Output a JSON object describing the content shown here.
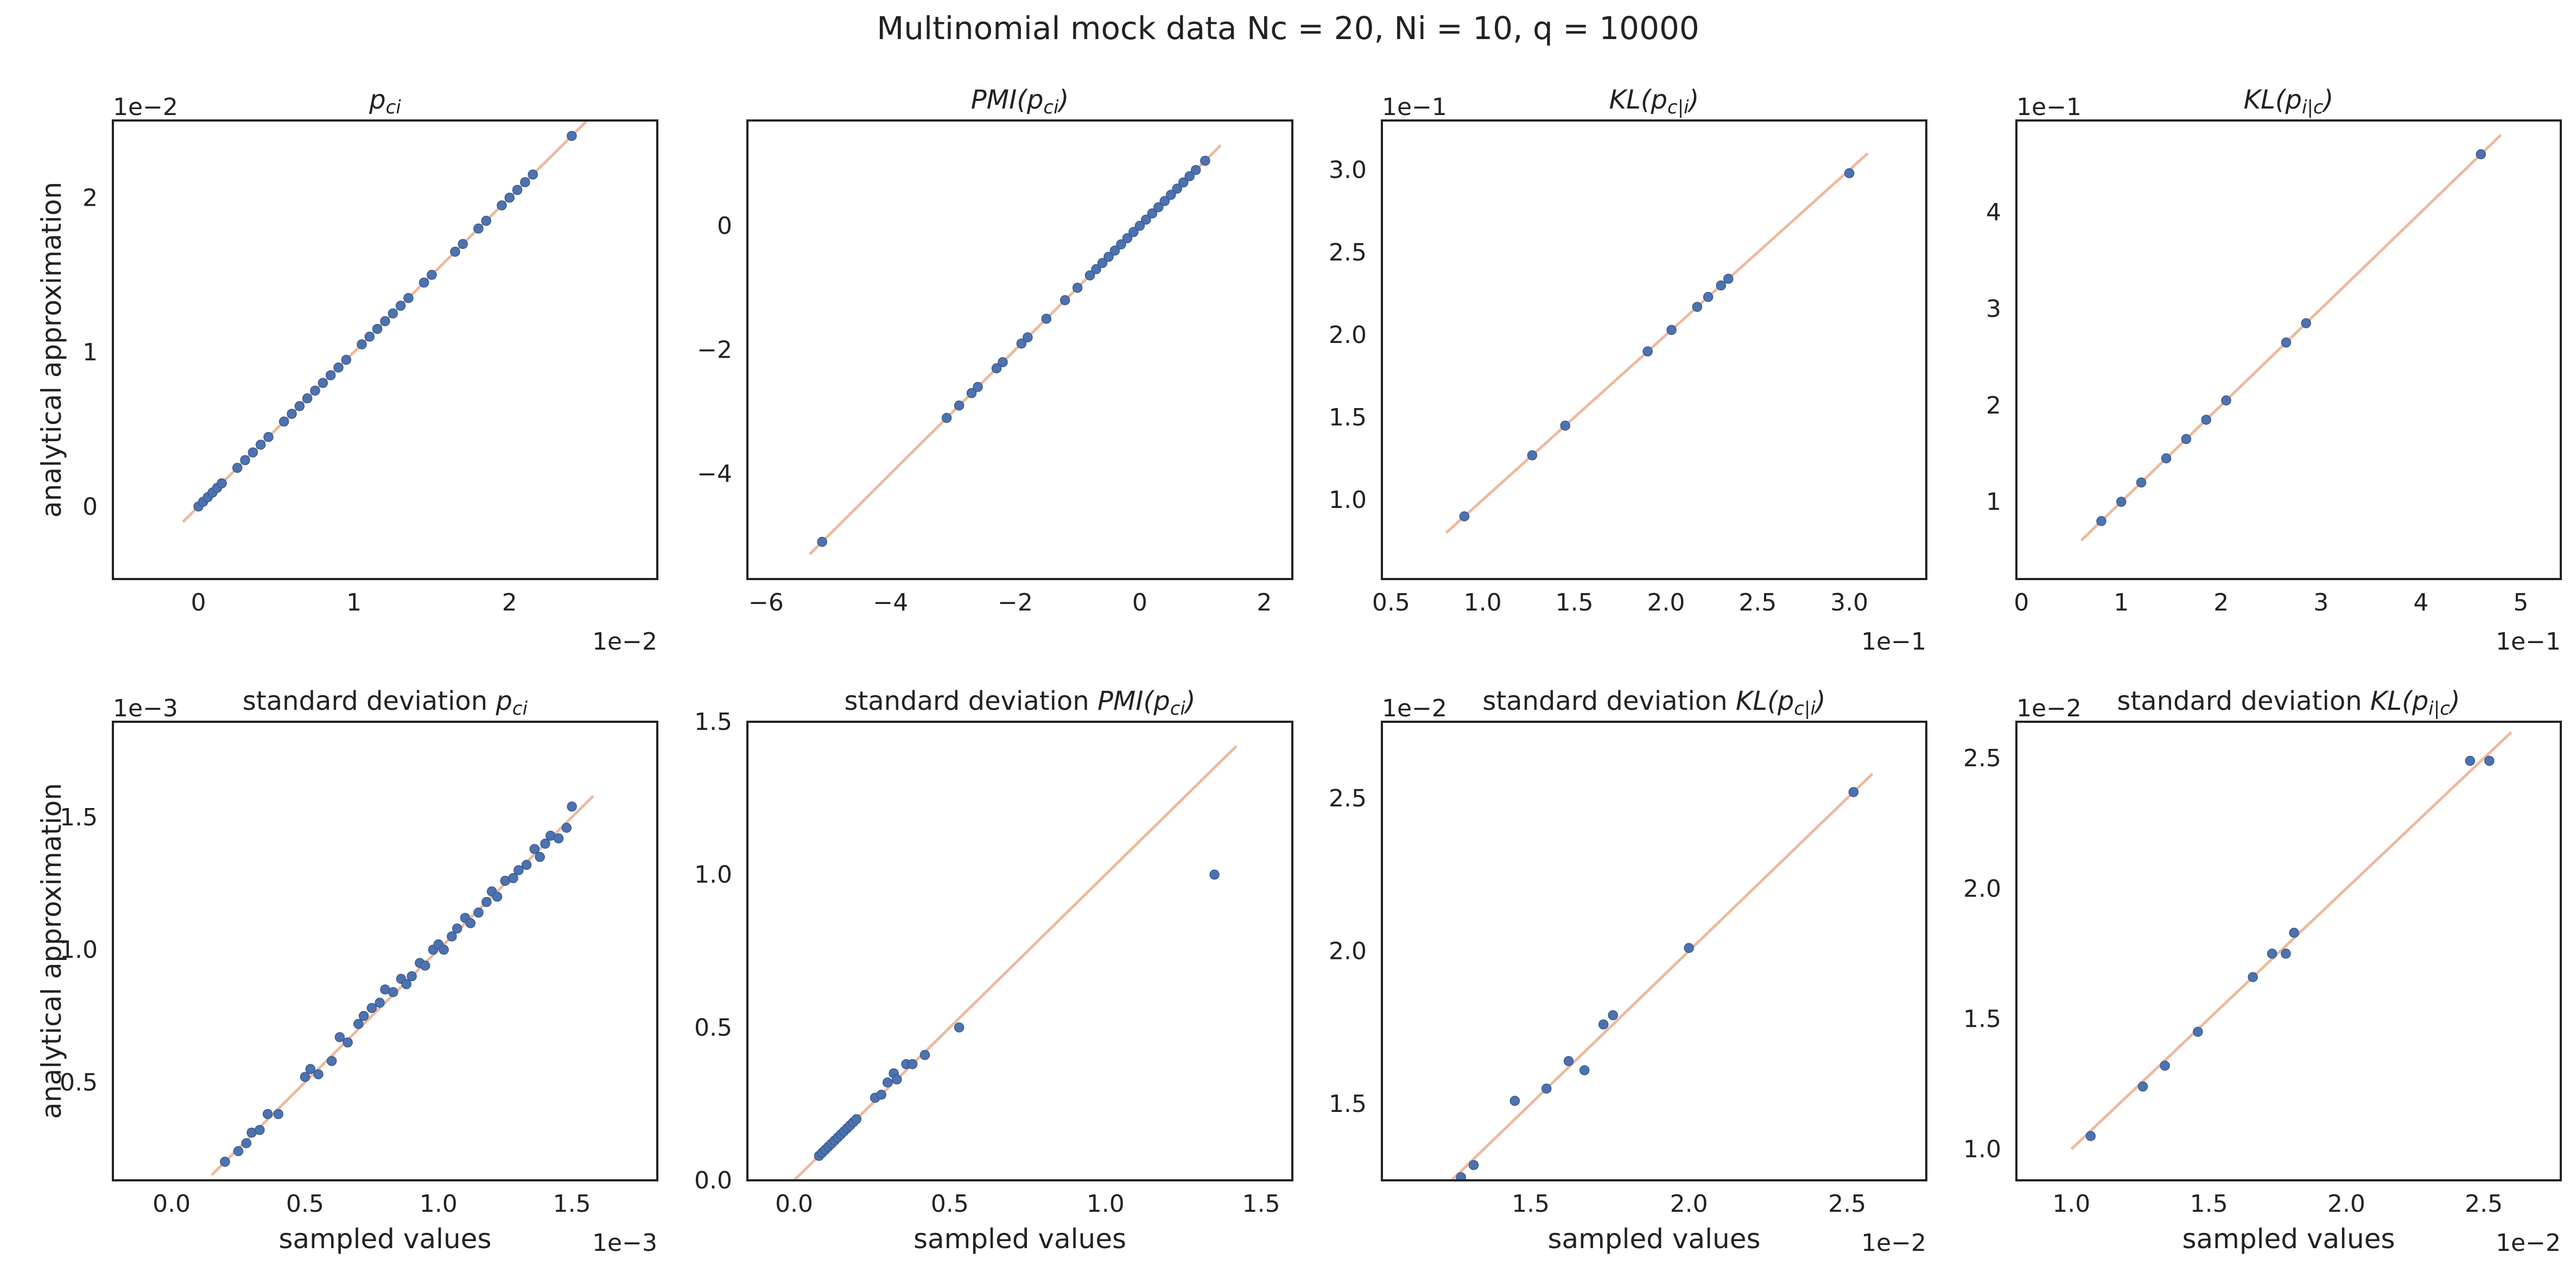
{
  "figure": {
    "title": "Multinomial mock data Nc = 20, Ni = 10, q = 10000"
  },
  "colors": {
    "points": "#4c72b0",
    "identity_line": "#eeb99a",
    "axes": "#222222"
  },
  "chart_data": [
    {
      "type": "scatter",
      "title_prefix": "",
      "title_math": "p",
      "title_sub": "ci",
      "xlabel": "",
      "ylabel": "analytical approximation",
      "x_offset": "1e−2",
      "y_offset": "1e−2",
      "xlim": [
        -0.55,
        2.95
      ],
      "ylim": [
        -0.47,
        2.5
      ],
      "xticks": [
        0,
        1,
        2
      ],
      "xtick_labels": [
        "0",
        "1",
        "2"
      ],
      "yticks": [
        0,
        1,
        2
      ],
      "ytick_labels": [
        "0",
        "1",
        "2"
      ],
      "line": [
        [
          -0.1,
          -0.1
        ],
        [
          2.5,
          2.5
        ]
      ],
      "points": [
        [
          0.0,
          0.0
        ],
        [
          0.03,
          0.03
        ],
        [
          0.06,
          0.06
        ],
        [
          0.09,
          0.09
        ],
        [
          0.12,
          0.12
        ],
        [
          0.15,
          0.15
        ],
        [
          0.25,
          0.25
        ],
        [
          0.3,
          0.3
        ],
        [
          0.35,
          0.35
        ],
        [
          0.4,
          0.4
        ],
        [
          0.45,
          0.45
        ],
        [
          0.55,
          0.55
        ],
        [
          0.6,
          0.6
        ],
        [
          0.65,
          0.65
        ],
        [
          0.7,
          0.7
        ],
        [
          0.75,
          0.75
        ],
        [
          0.8,
          0.8
        ],
        [
          0.85,
          0.85
        ],
        [
          0.9,
          0.9
        ],
        [
          0.95,
          0.95
        ],
        [
          1.05,
          1.05
        ],
        [
          1.1,
          1.1
        ],
        [
          1.15,
          1.15
        ],
        [
          1.2,
          1.2
        ],
        [
          1.25,
          1.25
        ],
        [
          1.3,
          1.3
        ],
        [
          1.35,
          1.35
        ],
        [
          1.45,
          1.45
        ],
        [
          1.5,
          1.5
        ],
        [
          1.65,
          1.65
        ],
        [
          1.7,
          1.7
        ],
        [
          1.8,
          1.8
        ],
        [
          1.85,
          1.85
        ],
        [
          1.95,
          1.95
        ],
        [
          2.0,
          2.0
        ],
        [
          2.05,
          2.05
        ],
        [
          2.1,
          2.1
        ],
        [
          2.15,
          2.15
        ],
        [
          2.4,
          2.4
        ]
      ]
    },
    {
      "type": "scatter",
      "title_prefix": "",
      "title_math": "PMI(p",
      "title_sub": "ci",
      "title_suffix": ")",
      "xlabel": "",
      "ylabel": "",
      "x_offset": "",
      "y_offset": "",
      "xlim": [
        -6.3,
        2.45
      ],
      "ylim": [
        -5.7,
        1.7
      ],
      "xticks": [
        -6,
        -4,
        -2,
        0,
        2
      ],
      "xtick_labels": [
        "−6",
        "−4",
        "−2",
        "0",
        "2"
      ],
      "yticks": [
        -4,
        -2,
        0
      ],
      "ytick_labels": [
        "−4",
        "−2",
        "0"
      ],
      "line": [
        [
          -5.3,
          -5.3
        ],
        [
          1.3,
          1.3
        ]
      ],
      "points": [
        [
          -5.1,
          -5.1
        ],
        [
          -3.1,
          -3.1
        ],
        [
          -2.9,
          -2.9
        ],
        [
          -2.7,
          -2.7
        ],
        [
          -2.6,
          -2.6
        ],
        [
          -2.3,
          -2.3
        ],
        [
          -2.2,
          -2.2
        ],
        [
          -1.9,
          -1.9
        ],
        [
          -1.8,
          -1.8
        ],
        [
          -1.5,
          -1.5
        ],
        [
          -1.2,
          -1.2
        ],
        [
          -1.0,
          -1.0
        ],
        [
          -0.8,
          -0.8
        ],
        [
          -0.7,
          -0.7
        ],
        [
          -0.6,
          -0.6
        ],
        [
          -0.5,
          -0.5
        ],
        [
          -0.4,
          -0.4
        ],
        [
          -0.3,
          -0.3
        ],
        [
          -0.2,
          -0.2
        ],
        [
          -0.1,
          -0.1
        ],
        [
          0.0,
          0.0
        ],
        [
          0.1,
          0.1
        ],
        [
          0.2,
          0.2
        ],
        [
          0.3,
          0.3
        ],
        [
          0.4,
          0.4
        ],
        [
          0.5,
          0.5
        ],
        [
          0.6,
          0.6
        ],
        [
          0.7,
          0.7
        ],
        [
          0.8,
          0.8
        ],
        [
          0.9,
          0.9
        ],
        [
          1.05,
          1.05
        ]
      ]
    },
    {
      "type": "scatter",
      "title_prefix": "",
      "title_math": "KL(p",
      "title_sub": "c|i",
      "title_suffix": ")",
      "xlabel": "",
      "ylabel": "",
      "x_offset": "1e−1",
      "y_offset": "1e−1",
      "xlim": [
        0.45,
        3.42
      ],
      "ylim": [
        0.52,
        3.3
      ],
      "xticks": [
        0.5,
        1.0,
        1.5,
        2.0,
        2.5,
        3.0
      ],
      "xtick_labels": [
        "0.5",
        "1.0",
        "1.5",
        "2.0",
        "2.5",
        "3.0"
      ],
      "yticks": [
        1.0,
        1.5,
        2.0,
        2.5,
        3.0
      ],
      "ytick_labels": [
        "1.0",
        "1.5",
        "2.0",
        "2.5",
        "3.0"
      ],
      "line": [
        [
          0.8,
          0.8
        ],
        [
          3.1,
          3.1
        ]
      ],
      "points": [
        [
          0.9,
          0.9
        ],
        [
          1.27,
          1.27
        ],
        [
          1.45,
          1.45
        ],
        [
          1.9,
          1.9
        ],
        [
          2.03,
          2.03
        ],
        [
          2.17,
          2.17
        ],
        [
          2.23,
          2.23
        ],
        [
          2.3,
          2.3
        ],
        [
          2.34,
          2.34
        ],
        [
          3.0,
          2.98
        ]
      ]
    },
    {
      "type": "scatter",
      "title_prefix": "",
      "title_math": "KL(p",
      "title_sub": "i|c",
      "title_suffix": ")",
      "xlabel": "",
      "ylabel": "",
      "x_offset": "1e−1",
      "y_offset": "1e−1",
      "xlim": [
        -0.05,
        5.4
      ],
      "ylim": [
        0.2,
        4.95
      ],
      "xticks": [
        0,
        1,
        2,
        3,
        4,
        5
      ],
      "xtick_labels": [
        "0",
        "1",
        "2",
        "3",
        "4",
        "5"
      ],
      "yticks": [
        1,
        2,
        3,
        4
      ],
      "ytick_labels": [
        "1",
        "2",
        "3",
        "4"
      ],
      "line": [
        [
          0.6,
          0.6
        ],
        [
          4.8,
          4.8
        ]
      ],
      "points": [
        [
          0.8,
          0.8
        ],
        [
          1.0,
          1.0
        ],
        [
          1.2,
          1.2
        ],
        [
          1.45,
          1.45
        ],
        [
          1.65,
          1.65
        ],
        [
          1.85,
          1.85
        ],
        [
          2.05,
          2.05
        ],
        [
          2.65,
          2.65
        ],
        [
          2.85,
          2.85
        ],
        [
          4.6,
          4.6
        ]
      ]
    },
    {
      "type": "scatter",
      "title_prefix": "standard deviation ",
      "title_math": "p",
      "title_sub": "ci",
      "xlabel": "sampled values",
      "ylabel": "analytical approximation",
      "x_offset": "1e−3",
      "y_offset": "1e−3",
      "xlim": [
        -0.22,
        1.82
      ],
      "ylim": [
        0.13,
        1.86
      ],
      "xticks": [
        0.0,
        0.5,
        1.0,
        1.5
      ],
      "xtick_labels": [
        "0.0",
        "0.5",
        "1.0",
        "1.5"
      ],
      "yticks": [
        0.5,
        1.0,
        1.5
      ],
      "ytick_labels": [
        "0.5",
        "1.0",
        "1.5"
      ],
      "line": [
        [
          0.15,
          0.15
        ],
        [
          1.58,
          1.58
        ]
      ],
      "points": [
        [
          0.2,
          0.2
        ],
        [
          0.25,
          0.24
        ],
        [
          0.28,
          0.27
        ],
        [
          0.3,
          0.31
        ],
        [
          0.33,
          0.32
        ],
        [
          0.36,
          0.38
        ],
        [
          0.4,
          0.38
        ],
        [
          0.5,
          0.52
        ],
        [
          0.52,
          0.55
        ],
        [
          0.55,
          0.53
        ],
        [
          0.6,
          0.58
        ],
        [
          0.63,
          0.67
        ],
        [
          0.66,
          0.65
        ],
        [
          0.7,
          0.72
        ],
        [
          0.72,
          0.75
        ],
        [
          0.75,
          0.78
        ],
        [
          0.78,
          0.8
        ],
        [
          0.8,
          0.85
        ],
        [
          0.83,
          0.84
        ],
        [
          0.86,
          0.89
        ],
        [
          0.88,
          0.87
        ],
        [
          0.9,
          0.9
        ],
        [
          0.93,
          0.95
        ],
        [
          0.95,
          0.94
        ],
        [
          0.98,
          1.0
        ],
        [
          1.0,
          1.02
        ],
        [
          1.02,
          1.0
        ],
        [
          1.05,
          1.05
        ],
        [
          1.07,
          1.08
        ],
        [
          1.1,
          1.12
        ],
        [
          1.12,
          1.1
        ],
        [
          1.15,
          1.14
        ],
        [
          1.18,
          1.18
        ],
        [
          1.2,
          1.22
        ],
        [
          1.22,
          1.2
        ],
        [
          1.25,
          1.26
        ],
        [
          1.28,
          1.27
        ],
        [
          1.3,
          1.3
        ],
        [
          1.33,
          1.32
        ],
        [
          1.36,
          1.38
        ],
        [
          1.38,
          1.35
        ],
        [
          1.4,
          1.4
        ],
        [
          1.42,
          1.43
        ],
        [
          1.45,
          1.42
        ],
        [
          1.48,
          1.46
        ],
        [
          1.5,
          1.54
        ]
      ]
    },
    {
      "type": "scatter",
      "title_prefix": "standard deviation ",
      "title_math": "PMI(p",
      "title_sub": "ci",
      "title_suffix": ")",
      "xlabel": "sampled values",
      "ylabel": "",
      "x_offset": "",
      "y_offset": "",
      "xlim": [
        -0.15,
        1.6
      ],
      "ylim": [
        0.0,
        1.5
      ],
      "xticks": [
        0.0,
        0.5,
        1.0,
        1.5
      ],
      "xtick_labels": [
        "0.0",
        "0.5",
        "1.0",
        "1.5"
      ],
      "yticks": [
        0.0,
        0.5,
        1.0,
        1.5
      ],
      "ytick_labels": [
        "0.0",
        "0.5",
        "1.0",
        "1.5"
      ],
      "line": [
        [
          0.0,
          0.0
        ],
        [
          1.42,
          1.42
        ]
      ],
      "points": [
        [
          0.08,
          0.08
        ],
        [
          0.09,
          0.09
        ],
        [
          0.1,
          0.1
        ],
        [
          0.11,
          0.11
        ],
        [
          0.12,
          0.12
        ],
        [
          0.13,
          0.13
        ],
        [
          0.14,
          0.14
        ],
        [
          0.15,
          0.15
        ],
        [
          0.16,
          0.16
        ],
        [
          0.17,
          0.17
        ],
        [
          0.18,
          0.18
        ],
        [
          0.19,
          0.19
        ],
        [
          0.2,
          0.2
        ],
        [
          0.26,
          0.27
        ],
        [
          0.28,
          0.28
        ],
        [
          0.3,
          0.32
        ],
        [
          0.32,
          0.35
        ],
        [
          0.33,
          0.33
        ],
        [
          0.36,
          0.38
        ],
        [
          0.38,
          0.38
        ],
        [
          0.42,
          0.41
        ],
        [
          0.53,
          0.5
        ],
        [
          1.35,
          1.0
        ]
      ]
    },
    {
      "type": "scatter",
      "title_prefix": "standard deviation ",
      "title_math": "KL(p",
      "title_sub": "c|i",
      "title_suffix": ")",
      "xlabel": "sampled values",
      "ylabel": "",
      "x_offset": "1e−2",
      "y_offset": "1e−2",
      "xlim": [
        1.03,
        2.75
      ],
      "ylim": [
        1.25,
        2.75
      ],
      "xticks": [
        1.5,
        2.0,
        2.5
      ],
      "xtick_labels": [
        "1.5",
        "2.0",
        "2.5"
      ],
      "yticks": [
        1.5,
        2.0,
        2.5
      ],
      "ytick_labels": [
        "1.5",
        "2.0",
        "2.5"
      ],
      "line": [
        [
          1.25,
          1.25
        ],
        [
          2.58,
          2.58
        ]
      ],
      "points": [
        [
          1.28,
          1.26
        ],
        [
          1.32,
          1.3
        ],
        [
          1.45,
          1.51
        ],
        [
          1.55,
          1.55
        ],
        [
          1.62,
          1.64
        ],
        [
          1.67,
          1.61
        ],
        [
          1.73,
          1.76
        ],
        [
          1.76,
          1.79
        ],
        [
          2.0,
          2.01
        ],
        [
          2.52,
          2.52
        ]
      ]
    },
    {
      "type": "scatter",
      "title_prefix": "standard deviation ",
      "title_math": "KL(p",
      "title_sub": "i|c",
      "title_suffix": ")",
      "xlabel": "sampled values",
      "ylabel": "",
      "x_offset": "1e−2",
      "y_offset": "1e−2",
      "xlim": [
        0.8,
        2.78
      ],
      "ylim": [
        0.88,
        2.64
      ],
      "xticks": [
        1.0,
        1.5,
        2.0,
        2.5
      ],
      "xtick_labels": [
        "1.0",
        "1.5",
        "2.0",
        "2.5"
      ],
      "yticks": [
        1.0,
        1.5,
        2.0,
        2.5
      ],
      "ytick_labels": [
        "1.0",
        "1.5",
        "2.0",
        "2.5"
      ],
      "line": [
        [
          1.0,
          1.0
        ],
        [
          2.6,
          2.6
        ]
      ],
      "points": [
        [
          1.07,
          1.05
        ],
        [
          1.26,
          1.24
        ],
        [
          1.34,
          1.32
        ],
        [
          1.46,
          1.45
        ],
        [
          1.66,
          1.66
        ],
        [
          1.73,
          1.75
        ],
        [
          1.78,
          1.75
        ],
        [
          1.81,
          1.83
        ],
        [
          2.45,
          2.49
        ],
        [
          2.52,
          2.49
        ]
      ]
    }
  ]
}
